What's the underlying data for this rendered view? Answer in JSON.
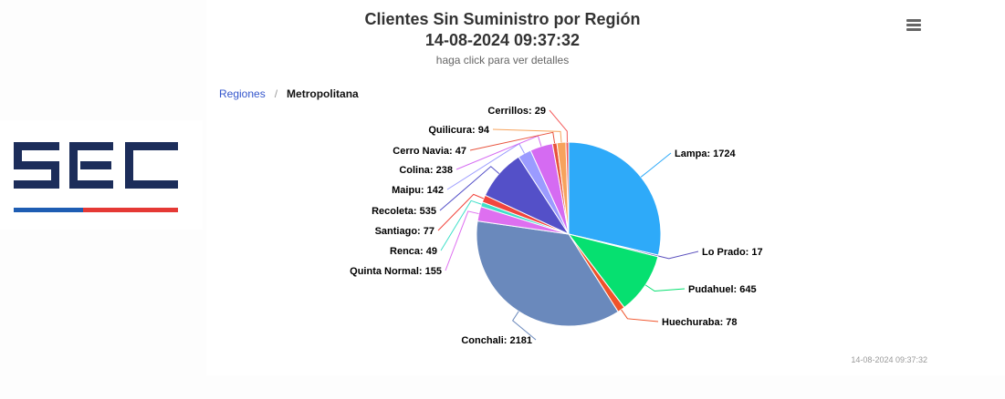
{
  "header": {
    "title": "Clientes Sin Suministro por Región",
    "datetime": "14-08-2024 09:37:32",
    "subtitle": "haga click para ver detalles"
  },
  "breadcrumb": {
    "parent": "Regiones",
    "separator": "/",
    "current": "Metropolitana"
  },
  "logo": {
    "text": "SEC",
    "colors": {
      "navy": "#1c2d5a",
      "blue": "#1e5db3",
      "red": "#e53935"
    }
  },
  "menu": {
    "icon": "hamburger-menu-icon"
  },
  "credits": "14-08-2024 09:37:32",
  "chart_data": {
    "type": "pie",
    "title": "Clientes Sin Suministro por Región",
    "subtitle": "haga click para ver detalles",
    "slices": [
      {
        "label": "Lampa",
        "value": 1724,
        "color": "#2eaaf9",
        "text": "Lampa: 1724"
      },
      {
        "label": "Lo Prado",
        "value": 17,
        "color": "#5a4fbd",
        "text": "Lo Prado: 17"
      },
      {
        "label": "Pudahuel",
        "value": 645,
        "color": "#06e070",
        "text": "Pudahuel: 645"
      },
      {
        "label": "Huechuraba",
        "value": 78,
        "color": "#f0532a",
        "text": "Huechuraba: 78"
      },
      {
        "label": "Conchali",
        "value": 2181,
        "color": "#6a89bc",
        "text": "Conchali: 2181"
      },
      {
        "label": "Quinta Normal",
        "value": 155,
        "color": "#de6ff0",
        "text": "Quinta Normal: 155"
      },
      {
        "label": "Renca",
        "value": 49,
        "color": "#3fe0c9",
        "text": "Renca: 49"
      },
      {
        "label": "Santiago",
        "value": 77,
        "color": "#f2453d",
        "text": "Santiago: 77"
      },
      {
        "label": "Recoleta",
        "value": 535,
        "color": "#5450c8",
        "text": "Recoleta: 535"
      },
      {
        "label": "Maipu",
        "value": 142,
        "color": "#9b9bff",
        "text": "Maipu: 142"
      },
      {
        "label": "Colina",
        "value": 238,
        "color": "#d56bf2",
        "text": "Colina: 238"
      },
      {
        "label": "Cerro Navia",
        "value": 47,
        "color": "#e8533d",
        "text": "Cerro Navia: 47"
      },
      {
        "label": "Quilicura",
        "value": 94,
        "color": "#f7a35c",
        "text": "Quilicura: 94"
      },
      {
        "label": "Cerrillos",
        "value": 29,
        "color": "#f45b5b",
        "text": "Cerrillos: 29"
      }
    ]
  }
}
